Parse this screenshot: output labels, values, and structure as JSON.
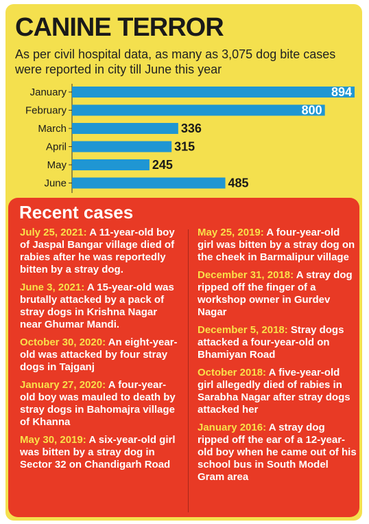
{
  "header": {
    "title": "CANINE TERROR",
    "subtitle": "As per civil hospital data, as many as 3,075 dog bite cases were reported in city till June this year"
  },
  "chart_data": {
    "type": "bar",
    "orientation": "horizontal",
    "categories": [
      "January",
      "February",
      "March",
      "April",
      "May",
      "June"
    ],
    "values": [
      894,
      800,
      336,
      315,
      245,
      485
    ],
    "title": "",
    "xlabel": "",
    "ylabel": "",
    "xlim": [
      0,
      894
    ],
    "grid": false,
    "bar_color": "#1f96d3"
  },
  "recent": {
    "title": "Recent cases",
    "left": [
      {
        "date": "July 25, 2021:",
        "text": " A 11-year-old boy of Jaspal Bangar village died of rabies after he was reportedly bitten by a stray dog."
      },
      {
        "date": "June 3, 2021:",
        "text": "  A 15-year-old was brutally attacked by a pack of stray dogs in Krishna Nagar near Ghumar Mandi."
      },
      {
        "date": "October 30, 2020:",
        "text": " An eight-year-old was attacked by four stray dogs in Tajganj"
      },
      {
        "date": "January 27, 2020:",
        "text": " A four-year-old boy was mauled to death by stray dogs in Bahomajra village of Khanna"
      },
      {
        "date": "May 30, 2019:",
        "text": " A six-year-old girl was bitten by a stray dog in Sector 32 on Chandigarh Road"
      }
    ],
    "right": [
      {
        "date": "May 25, 2019:",
        "text": " A four-year-old girl was bitten by a stray dog on the cheek in Barmalipur village"
      },
      {
        "date": "December 31, 2018:",
        "text": " A stray dog ripped off the finger of a workshop owner in Gurdev Nagar"
      },
      {
        "date": "December 5, 2018:",
        "text": " Stray dogs attacked a four-year-old on Bhamiyan Road"
      },
      {
        "date": "October 2018:",
        "text": " A five-year-old girl allegedly died of rabies in Sarabha Nagar after stray dogs attacked her"
      },
      {
        "date": "January 2016:",
        "text": " A stray dog ripped off the ear of a 12-year-old boy when he came out of his school bus in South Model Gram area"
      }
    ]
  },
  "colors": {
    "background": "#f4e04e",
    "panel": "#e83a25",
    "date_text": "#f9e04a",
    "bar": "#1f96d3"
  }
}
